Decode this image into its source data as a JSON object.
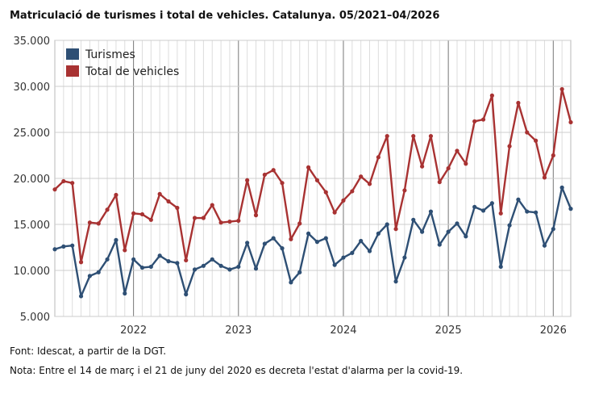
{
  "title": "Matriculació de turismes i total de vehicles. Catalunya. 05/2021–04/2026",
  "source": "Font: Idescat, a partir de la DGT.",
  "note": "Nota: Entre el 14 de març i el 21 de juny del 2020 es decreta l'estat d'alarma per la covid-19.",
  "chart_data": {
    "type": "line",
    "title": "Matriculació de turismes i total de vehicles. Catalunya. 05/2021–04/2026",
    "xlabel": "",
    "ylabel": "",
    "ylim": [
      5000,
      35000
    ],
    "yticks": [
      5000,
      10000,
      15000,
      20000,
      25000,
      30000,
      35000
    ],
    "ytick_labels": [
      "5.000",
      "10.000",
      "15.000",
      "20.000",
      "25.000",
      "30.000",
      "35.000"
    ],
    "xlim": [
      "2021-04",
      "2026-03"
    ],
    "year_ticks": [
      {
        "month": "2022-01",
        "label": "2022"
      },
      {
        "month": "2023-01",
        "label": "2023"
      },
      {
        "month": "2024-01",
        "label": "2024"
      },
      {
        "month": "2025-01",
        "label": "2025"
      },
      {
        "month": "2026-01",
        "label": "2026"
      }
    ],
    "grid": true,
    "legend_position": "top-left",
    "x": [
      "2021-04",
      "2021-05",
      "2021-06",
      "2021-07",
      "2021-08",
      "2021-09",
      "2021-10",
      "2021-11",
      "2021-12",
      "2022-01",
      "2022-02",
      "2022-03",
      "2022-04",
      "2022-05",
      "2022-06",
      "2022-07",
      "2022-08",
      "2022-09",
      "2022-10",
      "2022-11",
      "2022-12",
      "2023-01",
      "2023-02",
      "2023-03",
      "2023-04",
      "2023-05",
      "2023-06",
      "2023-07",
      "2023-08",
      "2023-09",
      "2023-10",
      "2023-11",
      "2023-12",
      "2024-01",
      "2024-02",
      "2024-03",
      "2024-04",
      "2024-05",
      "2024-06",
      "2024-07",
      "2024-08",
      "2024-09",
      "2024-10",
      "2024-11",
      "2024-12",
      "2025-01",
      "2025-02",
      "2025-03",
      "2025-04",
      "2025-05",
      "2025-06",
      "2025-07",
      "2025-08",
      "2025-09",
      "2025-10",
      "2025-11",
      "2025-12",
      "2026-01",
      "2026-02",
      "2026-03"
    ],
    "series": [
      {
        "name": "Turismes",
        "color": "#2e4f74",
        "values": [
          12300,
          12600,
          12700,
          7200,
          9400,
          9800,
          11200,
          13300,
          7500,
          11200,
          10300,
          10400,
          11600,
          11000,
          10800,
          7400,
          10100,
          10500,
          11200,
          10500,
          10100,
          10400,
          13000,
          10200,
          12900,
          13500,
          12400,
          8700,
          9800,
          14000,
          13100,
          13500,
          10600,
          11400,
          11900,
          13200,
          12100,
          14000,
          15000,
          8800,
          11400,
          15500,
          14200,
          16400,
          12800,
          14200,
          15100,
          13700,
          16900,
          16500,
          17300,
          10400,
          14900,
          17700,
          16400,
          16300,
          12700,
          14500,
          19000,
          16700
        ]
      },
      {
        "name": "Total de vehicles",
        "color": "#a83232",
        "values": [
          18800,
          19700,
          19500,
          10900,
          15200,
          15100,
          16600,
          18200,
          12200,
          16200,
          16100,
          15500,
          18300,
          17500,
          16800,
          11100,
          15700,
          15700,
          17100,
          15200,
          15300,
          15400,
          19800,
          16000,
          20400,
          20900,
          19500,
          13400,
          15100,
          21200,
          19800,
          18500,
          16300,
          17600,
          18600,
          20200,
          19400,
          22300,
          24600,
          14500,
          18700,
          24600,
          21300,
          24600,
          19600,
          21100,
          23000,
          21600,
          26200,
          26400,
          29000,
          16200,
          23500,
          28200,
          25000,
          24100,
          20100,
          22500,
          29700,
          26100
        ]
      }
    ]
  }
}
